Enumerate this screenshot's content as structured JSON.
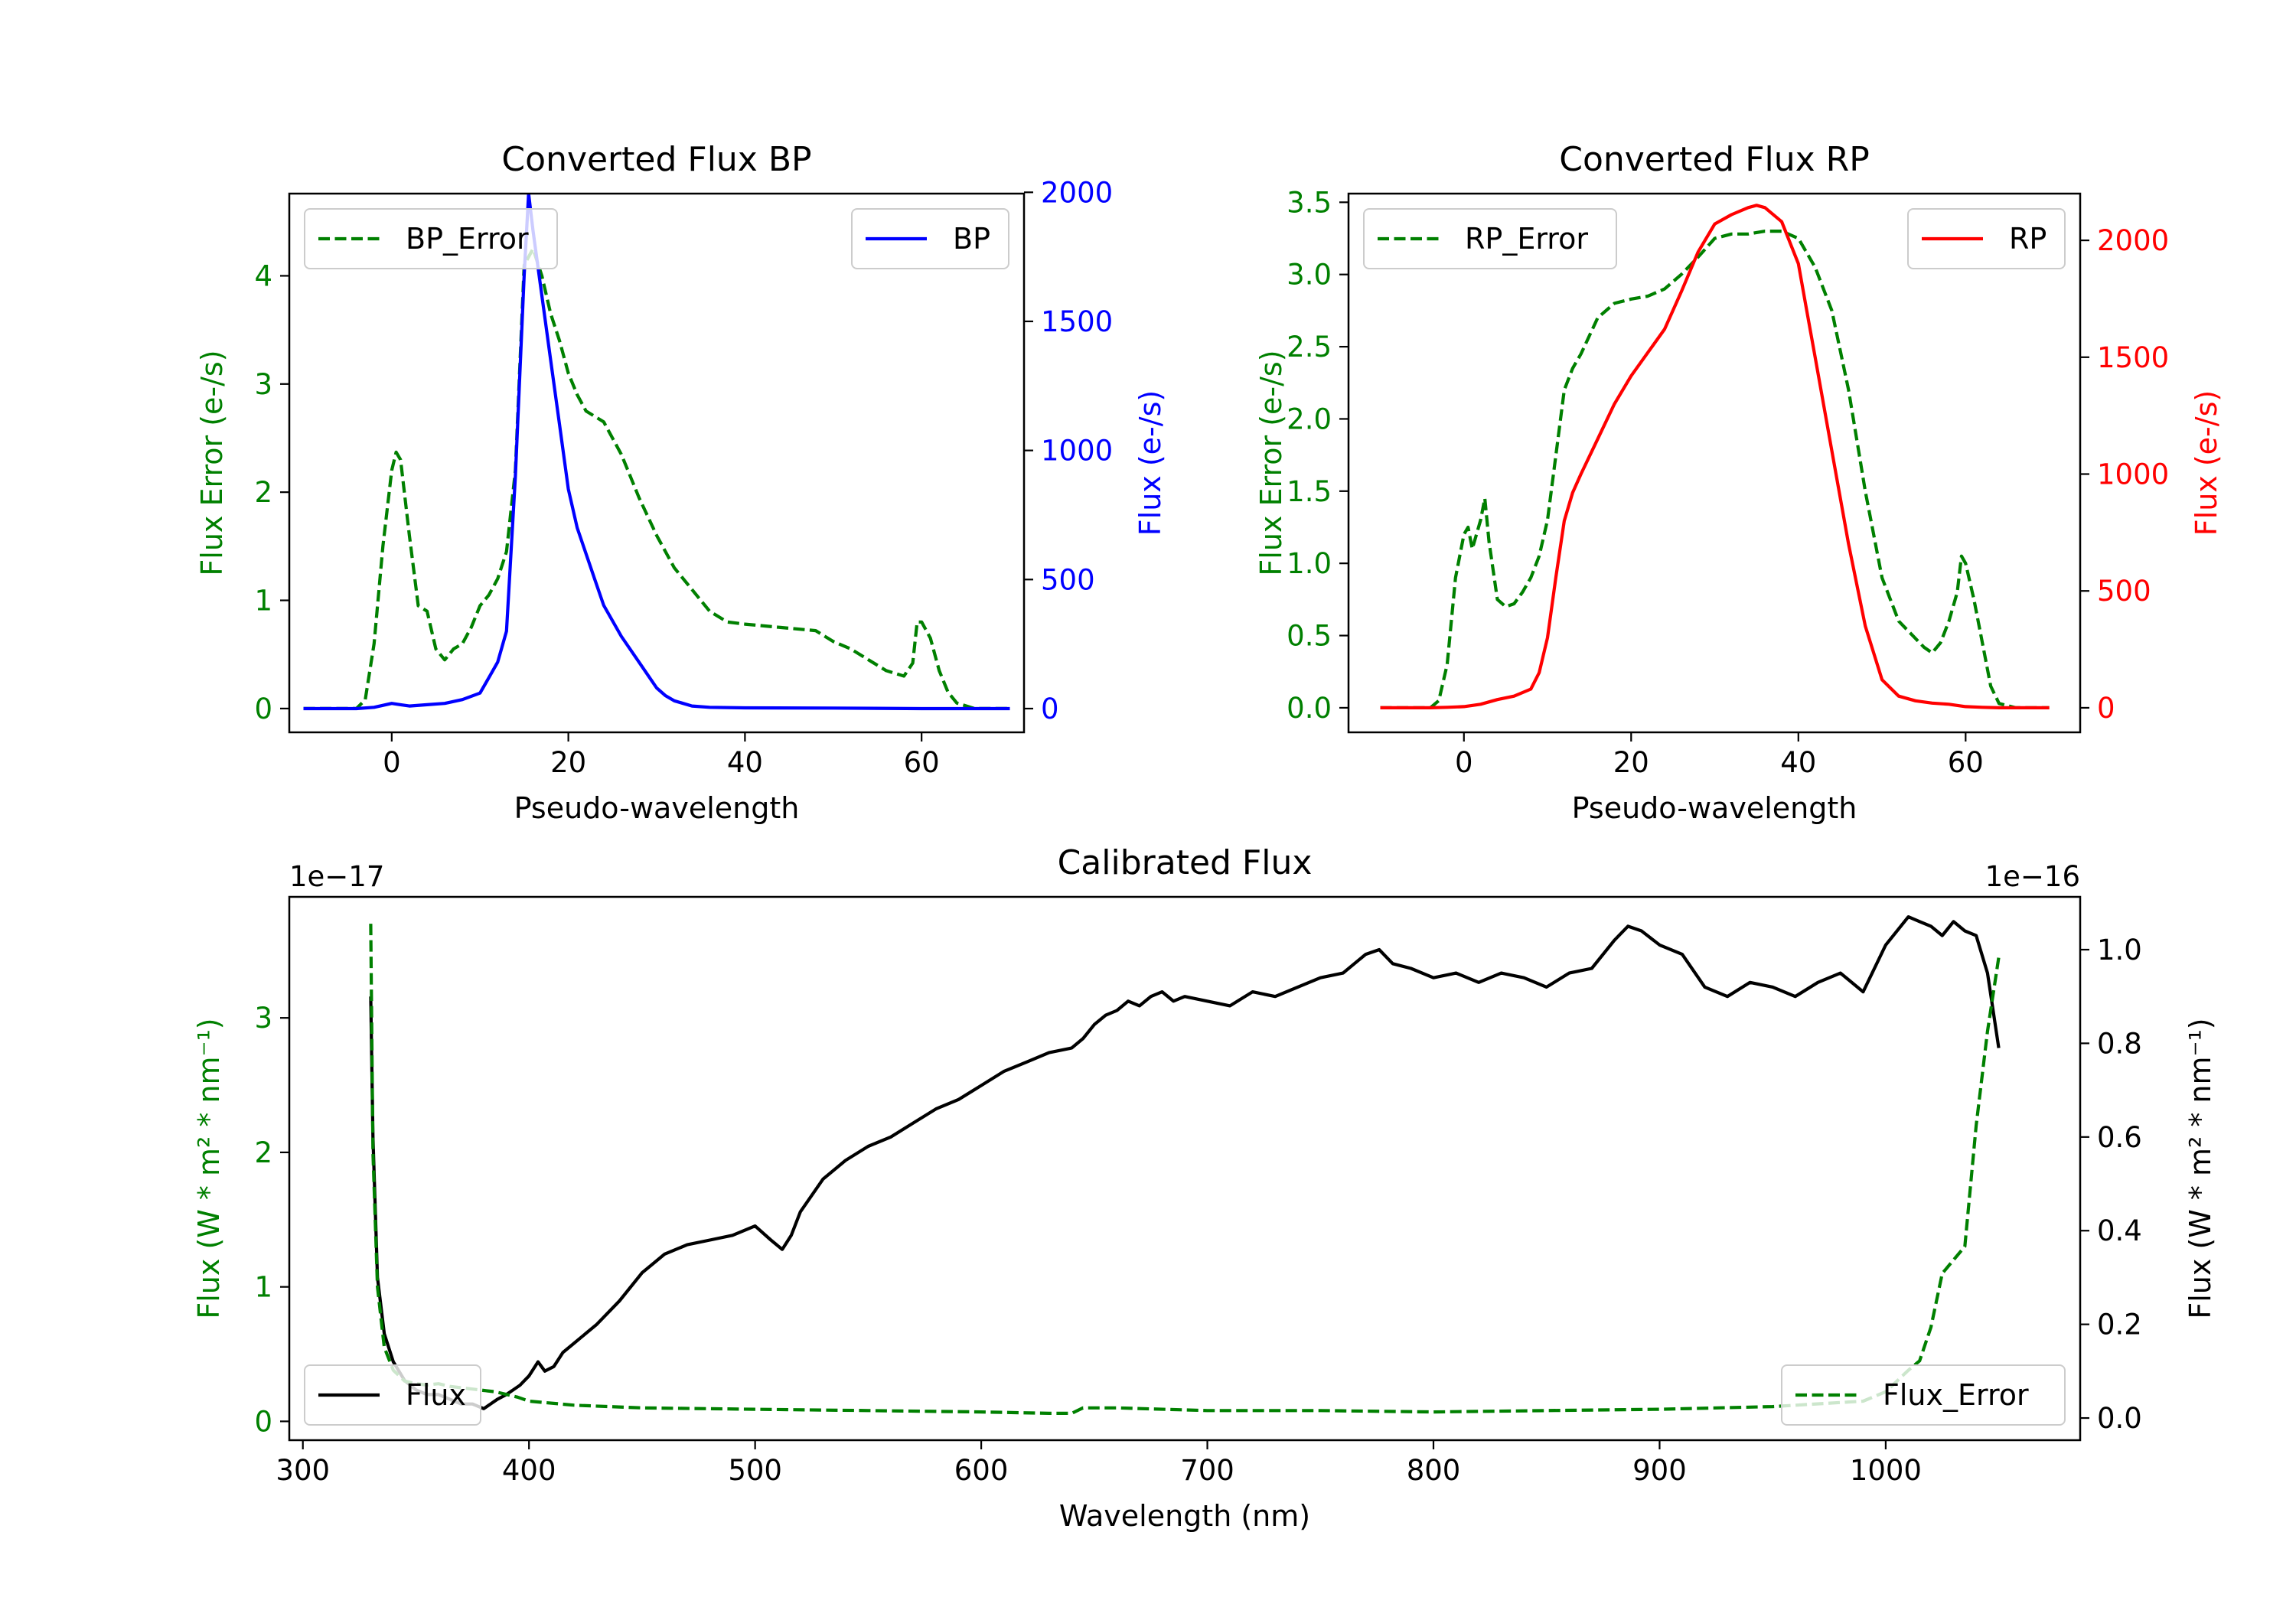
{
  "colors": {
    "error": "#008000",
    "bp": "#0000ff",
    "rp": "#ff0000",
    "flux": "#000000"
  },
  "chart_data": [
    {
      "type": "line",
      "title": "Converted Flux BP",
      "xlabel": "Pseudo-wavelength",
      "ylabel_left": "Flux Error (e-/s)",
      "ylabel_right": "Flux (e-/s)",
      "xlim": [
        -11.6,
        71.6
      ],
      "ylim_left": [
        -0.22,
        4.76
      ],
      "ylim_right": [
        -92,
        1995
      ],
      "xticks": [
        0,
        20,
        40,
        60
      ],
      "xtick_labels": [
        "0",
        "20",
        "40",
        "60"
      ],
      "yticks_left": [
        0,
        1,
        2,
        3,
        4
      ],
      "ytick_labels_left": [
        "0",
        "1",
        "2",
        "3",
        "4"
      ],
      "yticks_right": [
        0,
        500,
        1000,
        1500,
        2000
      ],
      "ytick_labels_right": [
        "0",
        "500",
        "1000",
        "1500",
        "2000"
      ],
      "legend_left": "BP_Error",
      "legend_right": "BP",
      "series": [
        {
          "name": "BP_Error",
          "axis": "left",
          "style": "dashed",
          "color": "#008000",
          "x": [
            -10,
            -4,
            -3,
            -2,
            -1,
            0,
            0.5,
            1,
            2,
            3,
            4,
            5,
            6,
            7,
            8,
            9,
            10,
            11,
            12,
            13,
            14,
            15,
            16,
            17,
            18,
            19,
            20,
            21,
            22,
            23,
            24,
            25,
            26,
            27,
            28,
            30,
            32,
            34,
            36,
            38,
            40,
            44,
            48,
            50,
            52,
            54,
            56,
            58,
            59,
            59.5,
            60,
            61,
            62,
            63,
            64,
            66,
            68,
            70
          ],
          "y": [
            0,
            0,
            0.08,
            0.6,
            1.5,
            2.2,
            2.37,
            2.3,
            1.6,
            0.95,
            0.9,
            0.55,
            0.45,
            0.55,
            0.6,
            0.75,
            0.95,
            1.05,
            1.2,
            1.45,
            2.2,
            4.1,
            4.25,
            4.0,
            3.65,
            3.4,
            3.1,
            2.9,
            2.75,
            2.7,
            2.65,
            2.5,
            2.35,
            2.15,
            1.95,
            1.6,
            1.3,
            1.1,
            0.9,
            0.8,
            0.78,
            0.75,
            0.72,
            0.62,
            0.55,
            0.45,
            0.35,
            0.3,
            0.42,
            0.8,
            0.8,
            0.65,
            0.35,
            0.15,
            0.05,
            0,
            0,
            0
          ]
        },
        {
          "name": "BP",
          "axis": "right",
          "style": "solid",
          "color": "#0000ff",
          "x": [
            -10,
            -4,
            -2,
            0,
            1,
            2,
            4,
            6,
            8,
            10,
            11,
            12,
            13,
            14,
            15,
            15.5,
            16,
            17,
            18,
            19,
            20,
            21,
            22,
            23,
            24,
            26,
            28,
            30,
            31,
            32,
            34,
            36,
            40,
            50,
            60,
            70
          ],
          "y": [
            0,
            0,
            5,
            20,
            15,
            10,
            15,
            20,
            35,
            60,
            120,
            180,
            300,
            900,
            1680,
            1995,
            1850,
            1600,
            1350,
            1100,
            850,
            700,
            600,
            500,
            400,
            280,
            180,
            80,
            50,
            30,
            10,
            5,
            3,
            2,
            0,
            0
          ]
        }
      ]
    },
    {
      "type": "line",
      "title": "Converted Flux RP",
      "xlabel": "Pseudo-wavelength",
      "ylabel_left": "Flux Error (e-/s)",
      "ylabel_right": "Flux (e-/s)",
      "xlim": [
        -13.8,
        73.7
      ],
      "ylim_left": [
        -0.17,
        3.56
      ],
      "ylim_right": [
        -105,
        2200
      ],
      "xticks": [
        0,
        20,
        40,
        60
      ],
      "xtick_labels": [
        "0",
        "20",
        "40",
        "60"
      ],
      "yticks_left": [
        0,
        0.5,
        1,
        1.5,
        2,
        2.5,
        3,
        3.5
      ],
      "ytick_labels_left": [
        "0.0",
        "0.5",
        "1.0",
        "1.5",
        "2.0",
        "2.5",
        "3.0",
        "3.5"
      ],
      "yticks_right": [
        0,
        500,
        1000,
        1500,
        2000
      ],
      "ytick_labels_right": [
        "0",
        "500",
        "1000",
        "1500",
        "2000"
      ],
      "legend_left": "RP_Error",
      "legend_right": "RP",
      "series": [
        {
          "name": "RP_Error",
          "axis": "left",
          "style": "dashed",
          "color": "#008000",
          "x": [
            -10,
            -4,
            -3,
            -2,
            -1,
            0,
            0.5,
            1,
            2,
            2.5,
            3,
            4,
            5,
            6,
            7,
            8,
            9,
            10,
            11,
            12,
            13,
            14,
            16,
            18,
            20,
            22,
            24,
            26,
            28,
            30,
            32,
            34,
            36,
            38,
            40,
            42,
            44,
            46,
            48,
            50,
            52,
            54,
            55,
            56,
            57,
            58,
            59,
            59.5,
            60,
            61,
            62,
            63,
            64,
            66,
            68,
            70
          ],
          "y": [
            0,
            0,
            0.05,
            0.3,
            0.9,
            1.2,
            1.25,
            1.1,
            1.3,
            1.45,
            1.15,
            0.75,
            0.7,
            0.72,
            0.8,
            0.9,
            1.05,
            1.3,
            1.75,
            2.2,
            2.35,
            2.45,
            2.7,
            2.8,
            2.83,
            2.85,
            2.9,
            3.0,
            3.12,
            3.25,
            3.28,
            3.28,
            3.3,
            3.3,
            3.25,
            3.05,
            2.75,
            2.2,
            1.5,
            0.9,
            0.6,
            0.48,
            0.42,
            0.38,
            0.45,
            0.6,
            0.8,
            1.05,
            1.0,
            0.75,
            0.45,
            0.15,
            0.03,
            0,
            0,
            0
          ]
        },
        {
          "name": "RP",
          "axis": "right",
          "style": "solid",
          "color": "#ff0000",
          "x": [
            -10,
            -4,
            -2,
            0,
            2,
            4,
            6,
            8,
            9,
            10,
            11,
            12,
            13,
            14,
            16,
            18,
            20,
            22,
            24,
            26,
            28,
            30,
            32,
            34,
            35,
            36,
            38,
            40,
            41,
            42,
            44,
            46,
            48,
            50,
            52,
            54,
            56,
            58,
            60,
            62,
            64,
            66,
            70
          ],
          "y": [
            0,
            0,
            2,
            5,
            15,
            35,
            50,
            80,
            150,
            300,
            560,
            800,
            920,
            1000,
            1150,
            1300,
            1420,
            1520,
            1620,
            1780,
            1950,
            2070,
            2110,
            2140,
            2150,
            2140,
            2080,
            1900,
            1700,
            1500,
            1100,
            700,
            350,
            120,
            50,
            30,
            20,
            15,
            5,
            2,
            0,
            0,
            0
          ]
        }
      ]
    },
    {
      "type": "line",
      "title": "Calibrated Flux",
      "xlabel": "Wavelength (nm)",
      "ylabel_left": "Flux (W * m² * nm⁻¹)",
      "ylabel_right": "Flux (W * m² * nm⁻¹)",
      "offset_left": "1e−17",
      "offset_right": "1e−16",
      "xlim": [
        294,
        1086
      ],
      "ylim_left": [
        -0.14,
        3.9
      ],
      "ylim_right": [
        -0.0473,
        1.1127
      ],
      "xticks": [
        300,
        400,
        500,
        600,
        700,
        800,
        900,
        1000
      ],
      "xtick_labels": [
        "300",
        "400",
        "500",
        "600",
        "700",
        "800",
        "900",
        "1000"
      ],
      "yticks_left": [
        0,
        1,
        2,
        3
      ],
      "ytick_labels_left": [
        "0",
        "1",
        "2",
        "3"
      ],
      "yticks_right": [
        0,
        0.2,
        0.4,
        0.6,
        0.8,
        1.0
      ],
      "ytick_labels_right": [
        "0.0",
        "0.2",
        "0.4",
        "0.6",
        "0.8",
        "1.0"
      ],
      "legend_left": "Flux",
      "legend_right": "Flux_Error",
      "series": [
        {
          "name": "Flux",
          "axis": "right",
          "style": "solid",
          "color": "#000000",
          "x": [
            330,
            331,
            333,
            336,
            340,
            345,
            350,
            355,
            360,
            365,
            370,
            375,
            380,
            383,
            386,
            390,
            393,
            396,
            400,
            404,
            407,
            411,
            415,
            420,
            425,
            430,
            440,
            450,
            460,
            470,
            480,
            490,
            500,
            507,
            512,
            516,
            520,
            530,
            540,
            550,
            560,
            570,
            580,
            590,
            600,
            610,
            620,
            630,
            640,
            645,
            650,
            655,
            660,
            665,
            670,
            675,
            680,
            685,
            690,
            700,
            710,
            720,
            730,
            740,
            750,
            760,
            770,
            776,
            782,
            790,
            800,
            810,
            820,
            830,
            840,
            850,
            860,
            870,
            880,
            886,
            892,
            900,
            910,
            920,
            930,
            940,
            950,
            960,
            970,
            980,
            990,
            1000,
            1010,
            1015,
            1020,
            1025,
            1030,
            1035,
            1040,
            1045,
            1050
          ],
          "y": [
            0.9,
            0.6,
            0.3,
            0.18,
            0.12,
            0.08,
            0.06,
            0.05,
            0.05,
            0.04,
            0.03,
            0.03,
            0.02,
            0.03,
            0.04,
            0.05,
            0.06,
            0.07,
            0.09,
            0.12,
            0.1,
            0.11,
            0.14,
            0.16,
            0.18,
            0.2,
            0.25,
            0.31,
            0.35,
            0.37,
            0.38,
            0.39,
            0.41,
            0.38,
            0.36,
            0.39,
            0.44,
            0.51,
            0.55,
            0.58,
            0.6,
            0.63,
            0.66,
            0.68,
            0.71,
            0.74,
            0.76,
            0.78,
            0.79,
            0.81,
            0.84,
            0.86,
            0.87,
            0.89,
            0.88,
            0.9,
            0.91,
            0.89,
            0.9,
            0.89,
            0.88,
            0.91,
            0.9,
            0.92,
            0.94,
            0.95,
            0.99,
            1.0,
            0.97,
            0.96,
            0.94,
            0.95,
            0.93,
            0.95,
            0.94,
            0.92,
            0.95,
            0.96,
            1.02,
            1.05,
            1.04,
            1.01,
            0.99,
            0.92,
            0.9,
            0.93,
            0.92,
            0.9,
            0.93,
            0.95,
            0.91,
            1.01,
            1.07,
            1.06,
            1.05,
            1.03,
            1.06,
            1.04,
            1.03,
            0.95,
            0.79
          ]
        },
        {
          "name": "Flux_Error",
          "axis": "left",
          "style": "dashed",
          "color": "#008000",
          "x": [
            330,
            331,
            333,
            336,
            340,
            345,
            350,
            355,
            360,
            365,
            370,
            375,
            380,
            385,
            390,
            395,
            400,
            420,
            450,
            500,
            550,
            600,
            630,
            640,
            645,
            660,
            700,
            750,
            800,
            850,
            900,
            950,
            990,
            1000,
            1005,
            1010,
            1015,
            1020,
            1025,
            1030,
            1035,
            1040,
            1045,
            1050
          ],
          "y": [
            3.7,
            2.0,
            1.0,
            0.55,
            0.38,
            0.3,
            0.28,
            0.27,
            0.28,
            0.26,
            0.25,
            0.24,
            0.23,
            0.22,
            0.2,
            0.18,
            0.15,
            0.12,
            0.1,
            0.09,
            0.08,
            0.07,
            0.06,
            0.06,
            0.1,
            0.1,
            0.08,
            0.08,
            0.07,
            0.08,
            0.09,
            0.11,
            0.15,
            0.22,
            0.3,
            0.38,
            0.45,
            0.7,
            1.1,
            1.2,
            1.3,
            2.2,
            2.9,
            3.45
          ]
        }
      ]
    }
  ]
}
